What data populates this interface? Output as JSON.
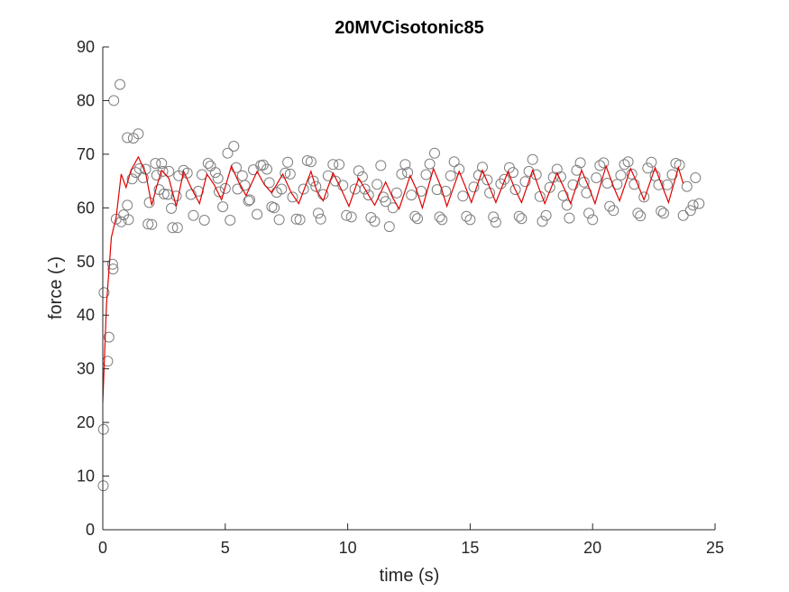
{
  "chart_data": {
    "type": "scatter",
    "title": "20MVCisotonic85",
    "xlabel": "time (s)",
    "ylabel": "force (-)",
    "xlim": [
      0,
      25
    ],
    "ylim": [
      0,
      90
    ],
    "xticks": [
      0,
      5,
      10,
      15,
      20,
      25
    ],
    "yticks": [
      0,
      10,
      20,
      30,
      40,
      50,
      60,
      70,
      80,
      90
    ],
    "grid": false,
    "box": "open (left and bottom axes only)",
    "colors": {
      "axis": "#262626",
      "scatter": "#7f7f7f",
      "line": "#e00000",
      "title": "#000000"
    },
    "series": [
      {
        "type": "scatter",
        "marker": "open-circle",
        "points": [
          [
            0.02,
            8.2
          ],
          [
            0.03,
            18.7
          ],
          [
            0.05,
            44.2
          ],
          [
            0.2,
            31.4
          ],
          [
            0.25,
            35.9
          ],
          [
            0.4,
            49.5
          ],
          [
            0.42,
            48.6
          ],
          [
            0.45,
            80.0
          ],
          [
            0.55,
            57.9
          ],
          [
            0.7,
            83.0
          ],
          [
            0.75,
            57.4
          ],
          [
            0.85,
            58.7
          ],
          [
            1.0,
            73.1
          ],
          [
            1.0,
            60.5
          ],
          [
            1.05,
            57.8
          ],
          [
            1.2,
            65.4
          ],
          [
            1.25,
            73.0
          ],
          [
            1.35,
            66.6
          ],
          [
            1.45,
            73.8
          ],
          [
            1.5,
            67.3
          ],
          [
            1.65,
            65.6
          ],
          [
            1.75,
            67.2
          ],
          [
            1.85,
            57.0
          ],
          [
            1.9,
            61.0
          ],
          [
            2.0,
            56.9
          ],
          [
            2.15,
            68.3
          ],
          [
            2.2,
            66.1
          ],
          [
            2.3,
            63.4
          ],
          [
            2.4,
            68.3
          ],
          [
            2.45,
            66.8
          ],
          [
            2.5,
            62.6
          ],
          [
            2.65,
            62.5
          ],
          [
            2.7,
            66.8
          ],
          [
            2.8,
            59.9
          ],
          [
            2.85,
            56.3
          ],
          [
            3.0,
            62.2
          ],
          [
            3.05,
            56.3
          ],
          [
            3.1,
            66.0
          ],
          [
            3.3,
            67.0
          ],
          [
            3.45,
            66.5
          ],
          [
            3.6,
            62.5
          ],
          [
            3.7,
            58.6
          ],
          [
            3.9,
            63.1
          ],
          [
            4.05,
            66.2
          ],
          [
            4.15,
            57.7
          ],
          [
            4.3,
            68.3
          ],
          [
            4.4,
            67.8
          ],
          [
            4.6,
            66.6
          ],
          [
            4.7,
            65.5
          ],
          [
            4.75,
            63.0
          ],
          [
            4.9,
            60.2
          ],
          [
            5.0,
            63.6
          ],
          [
            5.1,
            70.2
          ],
          [
            5.2,
            57.7
          ],
          [
            5.35,
            71.5
          ],
          [
            5.45,
            67.5
          ],
          [
            5.5,
            63.5
          ],
          [
            5.7,
            66.0
          ],
          [
            5.8,
            64.2
          ],
          [
            5.95,
            61.3
          ],
          [
            6.0,
            61.5
          ],
          [
            6.15,
            67.1
          ],
          [
            6.3,
            58.8
          ],
          [
            6.45,
            67.9
          ],
          [
            6.55,
            68.0
          ],
          [
            6.7,
            67.2
          ],
          [
            6.8,
            64.7
          ],
          [
            6.9,
            60.2
          ],
          [
            7.0,
            60.0
          ],
          [
            7.1,
            62.9
          ],
          [
            7.2,
            57.8
          ],
          [
            7.3,
            63.5
          ],
          [
            7.45,
            66.5
          ],
          [
            7.55,
            68.5
          ],
          [
            7.65,
            66.3
          ],
          [
            7.75,
            62.0
          ],
          [
            7.9,
            57.9
          ],
          [
            8.05,
            57.8
          ],
          [
            8.2,
            63.5
          ],
          [
            8.35,
            68.8
          ],
          [
            8.5,
            68.6
          ],
          [
            8.6,
            65.0
          ],
          [
            8.7,
            64.0
          ],
          [
            8.8,
            59.0
          ],
          [
            8.9,
            57.9
          ],
          [
            9.0,
            62.5
          ],
          [
            9.2,
            66.0
          ],
          [
            9.4,
            68.1
          ],
          [
            9.5,
            65.0
          ],
          [
            9.65,
            68.1
          ],
          [
            9.8,
            64.2
          ],
          [
            9.95,
            58.6
          ],
          [
            10.15,
            58.3
          ],
          [
            10.3,
            63.5
          ],
          [
            10.45,
            66.9
          ],
          [
            10.6,
            65.8
          ],
          [
            10.7,
            63.5
          ],
          [
            10.85,
            62.4
          ],
          [
            10.95,
            58.2
          ],
          [
            11.1,
            57.5
          ],
          [
            11.2,
            64.4
          ],
          [
            11.35,
            67.9
          ],
          [
            11.45,
            62.0
          ],
          [
            11.55,
            61.2
          ],
          [
            11.7,
            56.5
          ],
          [
            11.85,
            60.0
          ],
          [
            12.0,
            62.8
          ],
          [
            12.2,
            66.3
          ],
          [
            12.35,
            68.1
          ],
          [
            12.45,
            66.6
          ],
          [
            12.6,
            62.4
          ],
          [
            12.75,
            58.4
          ],
          [
            12.85,
            58.0
          ],
          [
            13.0,
            63.1
          ],
          [
            13.2,
            66.2
          ],
          [
            13.35,
            68.2
          ],
          [
            13.55,
            70.2
          ],
          [
            13.65,
            63.4
          ],
          [
            13.75,
            58.3
          ],
          [
            13.85,
            57.8
          ],
          [
            14.0,
            63.1
          ],
          [
            14.2,
            66.0
          ],
          [
            14.35,
            68.6
          ],
          [
            14.55,
            67.2
          ],
          [
            14.7,
            62.2
          ],
          [
            14.85,
            58.4
          ],
          [
            15.0,
            57.8
          ],
          [
            15.15,
            63.9
          ],
          [
            15.35,
            66.1
          ],
          [
            15.5,
            67.6
          ],
          [
            15.7,
            65.2
          ],
          [
            15.8,
            62.8
          ],
          [
            15.95,
            58.3
          ],
          [
            16.05,
            57.3
          ],
          [
            16.25,
            64.5
          ],
          [
            16.4,
            65.3
          ],
          [
            16.6,
            67.5
          ],
          [
            16.75,
            66.6
          ],
          [
            16.85,
            63.4
          ],
          [
            17.0,
            58.4
          ],
          [
            17.1,
            58.0
          ],
          [
            17.25,
            64.9
          ],
          [
            17.4,
            66.8
          ],
          [
            17.55,
            69.0
          ],
          [
            17.7,
            66.2
          ],
          [
            17.85,
            62.1
          ],
          [
            17.95,
            57.5
          ],
          [
            18.1,
            58.6
          ],
          [
            18.25,
            63.8
          ],
          [
            18.4,
            65.7
          ],
          [
            18.55,
            67.2
          ],
          [
            18.7,
            65.8
          ],
          [
            18.8,
            62.3
          ],
          [
            18.95,
            60.5
          ],
          [
            19.05,
            58.1
          ],
          [
            19.2,
            64.3
          ],
          [
            19.35,
            67.0
          ],
          [
            19.5,
            68.4
          ],
          [
            19.65,
            64.8
          ],
          [
            19.75,
            62.8
          ],
          [
            19.85,
            59.0
          ],
          [
            20.0,
            57.8
          ],
          [
            20.15,
            65.6
          ],
          [
            20.3,
            67.9
          ],
          [
            20.45,
            68.4
          ],
          [
            20.6,
            64.6
          ],
          [
            20.7,
            60.3
          ],
          [
            20.85,
            59.5
          ],
          [
            21.0,
            64.4
          ],
          [
            21.15,
            66.1
          ],
          [
            21.3,
            68.1
          ],
          [
            21.45,
            68.6
          ],
          [
            21.6,
            66.3
          ],
          [
            21.7,
            64.4
          ],
          [
            21.85,
            59.0
          ],
          [
            21.95,
            58.5
          ],
          [
            22.1,
            62.0
          ],
          [
            22.25,
            67.4
          ],
          [
            22.4,
            68.5
          ],
          [
            22.55,
            66.0
          ],
          [
            22.7,
            64.3
          ],
          [
            22.8,
            59.4
          ],
          [
            22.9,
            59.0
          ],
          [
            23.05,
            64.3
          ],
          [
            23.25,
            66.2
          ],
          [
            23.4,
            68.3
          ],
          [
            23.55,
            68.0
          ],
          [
            23.7,
            58.6
          ],
          [
            23.85,
            64.0
          ],
          [
            24.0,
            59.5
          ],
          [
            24.1,
            60.5
          ],
          [
            24.2,
            65.6
          ],
          [
            24.35,
            60.8
          ]
        ]
      },
      {
        "type": "line",
        "points": [
          [
            0.0,
            23.8
          ],
          [
            0.15,
            42.0
          ],
          [
            0.35,
            54.5
          ],
          [
            0.55,
            58.3
          ],
          [
            0.75,
            66.3
          ],
          [
            0.95,
            63.8
          ],
          [
            1.15,
            67.0
          ],
          [
            1.45,
            69.5
          ],
          [
            1.75,
            66.5
          ],
          [
            2.0,
            60.5
          ],
          [
            2.2,
            64.0
          ],
          [
            2.4,
            67.0
          ],
          [
            2.7,
            65.5
          ],
          [
            3.0,
            60.3
          ],
          [
            3.3,
            66.8
          ],
          [
            3.6,
            63.8
          ],
          [
            3.95,
            60.8
          ],
          [
            4.25,
            66.3
          ],
          [
            4.55,
            64.3
          ],
          [
            4.85,
            61.5
          ],
          [
            5.25,
            67.8
          ],
          [
            5.55,
            64.8
          ],
          [
            5.85,
            62.3
          ],
          [
            6.3,
            66.8
          ],
          [
            6.6,
            64.3
          ],
          [
            6.9,
            62.8
          ],
          [
            7.35,
            66.3
          ],
          [
            7.7,
            62.8
          ],
          [
            8.0,
            60.8
          ],
          [
            8.5,
            66.8
          ],
          [
            8.75,
            63.0
          ],
          [
            9.0,
            61.3
          ],
          [
            9.4,
            66.5
          ],
          [
            9.7,
            63.8
          ],
          [
            10.05,
            60.3
          ],
          [
            10.45,
            65.5
          ],
          [
            10.8,
            62.8
          ],
          [
            11.1,
            60.5
          ],
          [
            11.55,
            64.8
          ],
          [
            11.85,
            61.8
          ],
          [
            12.1,
            59.8
          ],
          [
            12.55,
            66.0
          ],
          [
            12.8,
            63.5
          ],
          [
            13.05,
            60.0
          ],
          [
            13.5,
            67.3
          ],
          [
            13.8,
            64.0
          ],
          [
            14.05,
            60.3
          ],
          [
            14.55,
            66.8
          ],
          [
            14.8,
            64.0
          ],
          [
            15.05,
            61.0
          ],
          [
            15.5,
            67.0
          ],
          [
            15.8,
            63.8
          ],
          [
            16.05,
            61.0
          ],
          [
            16.55,
            66.8
          ],
          [
            16.8,
            63.8
          ],
          [
            17.1,
            61.0
          ],
          [
            17.55,
            67.0
          ],
          [
            17.8,
            63.8
          ],
          [
            18.05,
            60.8
          ],
          [
            18.55,
            66.5
          ],
          [
            18.85,
            63.5
          ],
          [
            19.1,
            60.8
          ],
          [
            19.55,
            67.0
          ],
          [
            19.85,
            63.8
          ],
          [
            20.1,
            60.8
          ],
          [
            20.55,
            67.8
          ],
          [
            20.85,
            64.0
          ],
          [
            21.1,
            61.3
          ],
          [
            21.55,
            67.3
          ],
          [
            21.85,
            64.3
          ],
          [
            22.1,
            61.5
          ],
          [
            22.55,
            67.5
          ],
          [
            22.85,
            64.0
          ],
          [
            23.1,
            61.0
          ],
          [
            23.5,
            67.5
          ],
          [
            23.7,
            64.5
          ]
        ]
      }
    ]
  }
}
